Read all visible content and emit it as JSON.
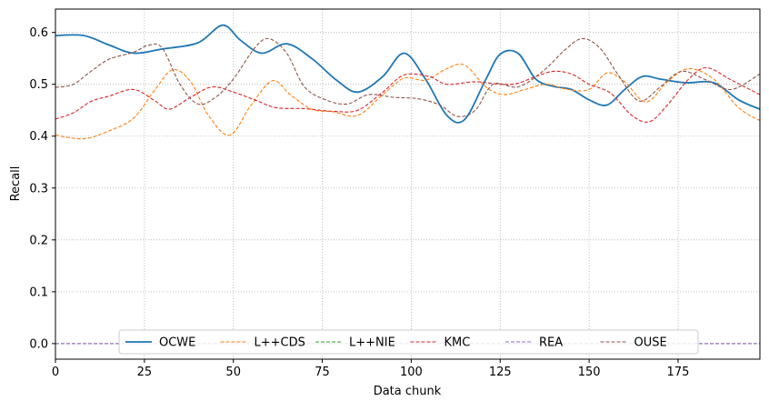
{
  "chart_data": {
    "type": "line",
    "xlabel": "Data chunk",
    "ylabel": "Recall",
    "xlim": [
      0,
      198
    ],
    "ylim": [
      -0.03,
      0.645
    ],
    "x_ticks": [
      0,
      25,
      50,
      75,
      100,
      125,
      150,
      175
    ],
    "x_tick_labels": [
      "0",
      "25",
      "50",
      "75",
      "100",
      "125",
      "150",
      "175"
    ],
    "y_ticks": [
      0.0,
      0.1,
      0.2,
      0.3,
      0.4,
      0.5,
      0.6
    ],
    "y_tick_labels": [
      "0.0",
      "0.1",
      "0.2",
      "0.3",
      "0.4",
      "0.5",
      "0.6"
    ],
    "grid": true,
    "legend_position": "bottom-center",
    "series": [
      {
        "name": "OCWE",
        "color": "#1f77b4",
        "dash": "solid",
        "x": [
          0,
          8,
          15,
          22,
          30,
          40,
          47,
          52,
          58,
          65,
          72,
          79,
          85,
          92,
          98,
          104,
          110,
          115,
          121,
          125,
          130,
          135,
          140,
          145,
          150,
          155,
          160,
          165,
          170,
          177,
          185,
          192,
          198
        ],
        "values": [
          0.594,
          0.594,
          0.576,
          0.56,
          0.568,
          0.58,
          0.614,
          0.585,
          0.56,
          0.578,
          0.55,
          0.508,
          0.485,
          0.515,
          0.56,
          0.51,
          0.44,
          0.432,
          0.51,
          0.558,
          0.56,
          0.51,
          0.496,
          0.49,
          0.47,
          0.46,
          0.49,
          0.515,
          0.51,
          0.503,
          0.503,
          0.47,
          0.452
        ]
      },
      {
        "name": "L++CDS",
        "color": "#ff7f0e",
        "dash": "dashed",
        "x": [
          0,
          8,
          15,
          22,
          28,
          33,
          38,
          43,
          49,
          55,
          61,
          66,
          72,
          78,
          85,
          92,
          98,
          104,
          110,
          115,
          121,
          126,
          132,
          138,
          144,
          150,
          155,
          160,
          166,
          172,
          178,
          185,
          192,
          198
        ],
        "values": [
          0.402,
          0.395,
          0.41,
          0.435,
          0.49,
          0.528,
          0.505,
          0.44,
          0.402,
          0.46,
          0.507,
          0.48,
          0.452,
          0.447,
          0.44,
          0.48,
          0.512,
          0.508,
          0.53,
          0.537,
          0.495,
          0.48,
          0.49,
          0.5,
          0.49,
          0.49,
          0.522,
          0.505,
          0.466,
          0.505,
          0.53,
          0.51,
          0.455,
          0.43
        ]
      },
      {
        "name": "L++NIE",
        "color": "#2ca02c",
        "dash": "dashed",
        "x": [
          0,
          198
        ],
        "values": [
          0.0,
          0.0
        ]
      },
      {
        "name": "KMC",
        "color": "#d62728",
        "dash": "dashed",
        "x": [
          0,
          5,
          10,
          15,
          22,
          28,
          32,
          38,
          44,
          50,
          56,
          62,
          70,
          78,
          85,
          92,
          98,
          105,
          110,
          118,
          125,
          130,
          135,
          140,
          145,
          150,
          156,
          162,
          167,
          172,
          178,
          183,
          190,
          198
        ],
        "values": [
          0.433,
          0.445,
          0.467,
          0.477,
          0.49,
          0.468,
          0.452,
          0.475,
          0.495,
          0.485,
          0.47,
          0.455,
          0.453,
          0.448,
          0.45,
          0.485,
          0.518,
          0.515,
          0.5,
          0.505,
          0.5,
          0.502,
          0.515,
          0.525,
          0.52,
          0.5,
          0.483,
          0.44,
          0.428,
          0.46,
          0.51,
          0.532,
          0.508,
          0.48
        ]
      },
      {
        "name": "REA",
        "color": "#9467bd",
        "dash": "dashed",
        "x": [
          0,
          198
        ],
        "values": [
          0.0,
          0.0
        ]
      },
      {
        "name": "OUSE",
        "color": "#8c564b",
        "dash": "dashed",
        "x": [
          0,
          5,
          10,
          15,
          22,
          26,
          30,
          35,
          40,
          45,
          50,
          56,
          60,
          65,
          70,
          76,
          82,
          88,
          95,
          102,
          108,
          113,
          118,
          123,
          130,
          137,
          143,
          148,
          153,
          158,
          164,
          170,
          176,
          183,
          190,
          198
        ],
        "values": [
          0.494,
          0.5,
          0.525,
          0.548,
          0.562,
          0.575,
          0.57,
          0.5,
          0.462,
          0.475,
          0.51,
          0.57,
          0.588,
          0.56,
          0.495,
          0.47,
          0.462,
          0.48,
          0.475,
          0.472,
          0.46,
          0.438,
          0.45,
          0.5,
          0.495,
          0.525,
          0.565,
          0.588,
          0.57,
          0.52,
          0.468,
          0.495,
          0.525,
          0.508,
          0.49,
          0.52
        ]
      }
    ]
  }
}
